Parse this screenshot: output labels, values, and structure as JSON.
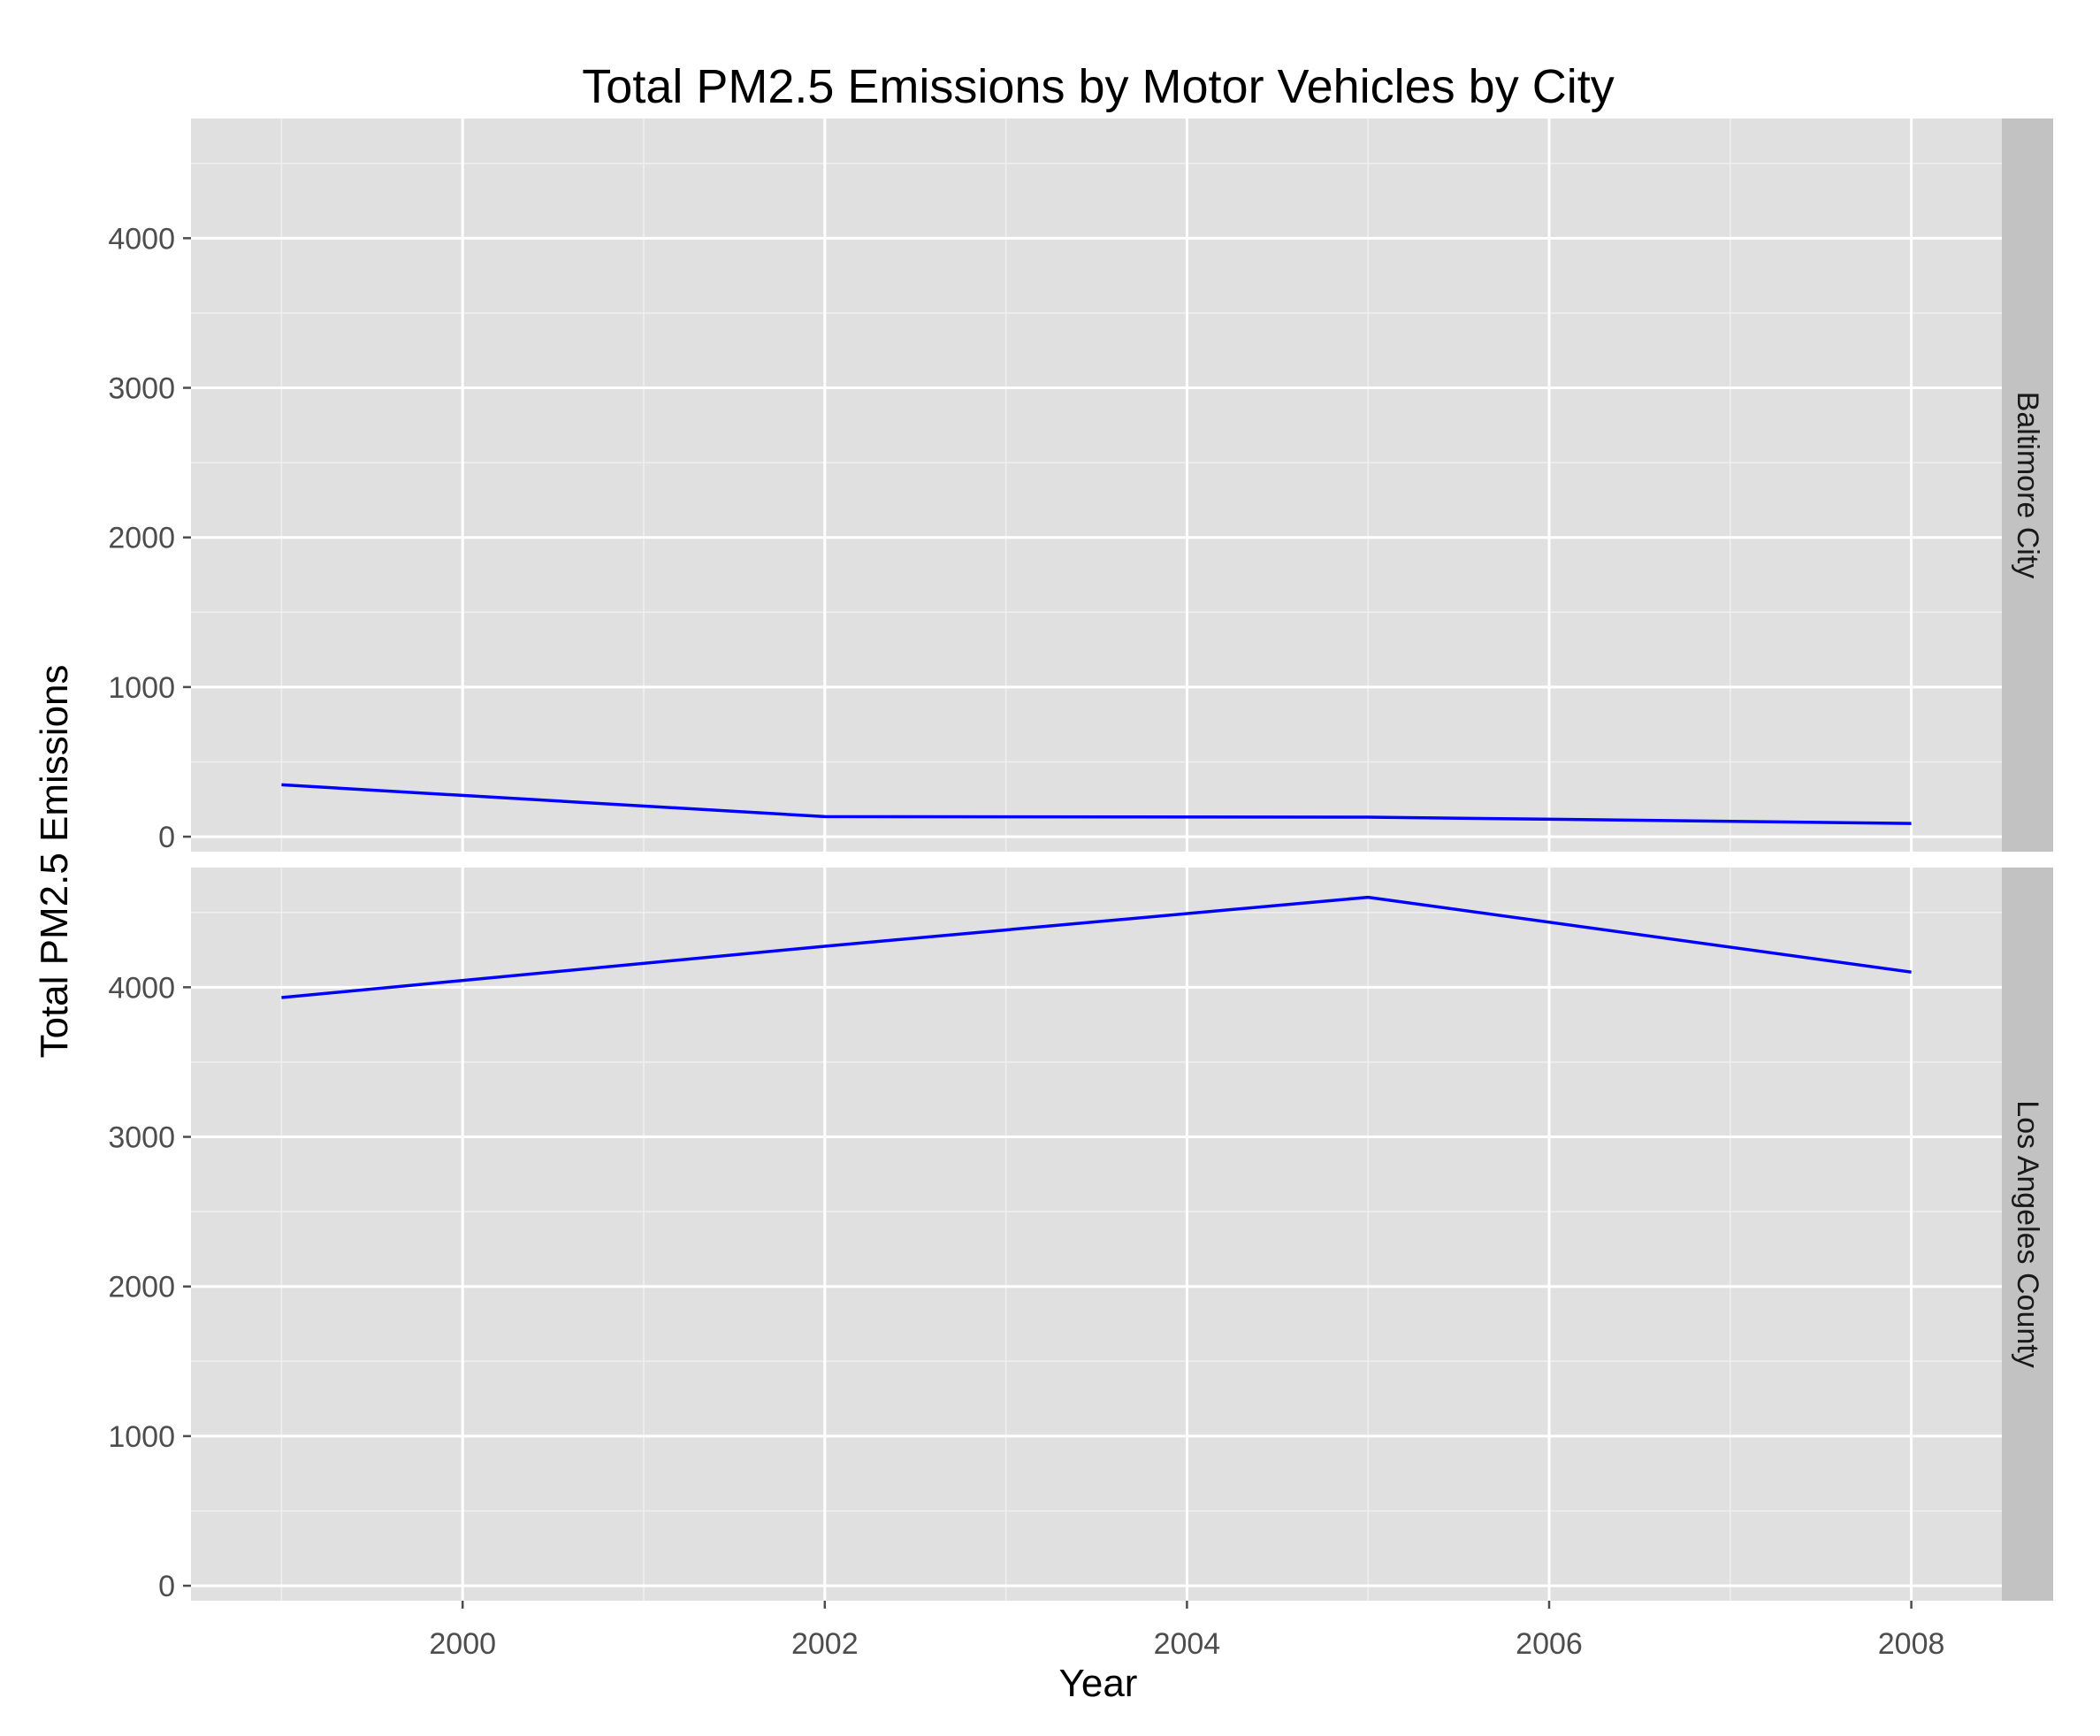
{
  "chart_data": {
    "type": "line",
    "title": "Total PM2.5 Emissions by Motor Vehicles by City",
    "xlabel": "Year",
    "ylabel": "Total PM2.5 Emissions",
    "x": [
      1999,
      2002,
      2005,
      2008
    ],
    "xlim": [
      1998.5,
      2008.5
    ],
    "x_ticks": [
      "2000",
      "2002",
      "2004",
      "2006",
      "2008"
    ],
    "ylim": [
      -100,
      4800
    ],
    "y_ticks": [
      "0",
      "1000",
      "2000",
      "3000",
      "4000"
    ],
    "grid": true,
    "line_color": "#0000ff",
    "facets": [
      {
        "label": "Baltimore City",
        "values": [
          346.8,
          134.3,
          130.4,
          88.3
        ]
      },
      {
        "label": "Los Angeles County",
        "values": [
          3931.1,
          4274.0,
          4601.4,
          4101.3
        ]
      }
    ]
  }
}
